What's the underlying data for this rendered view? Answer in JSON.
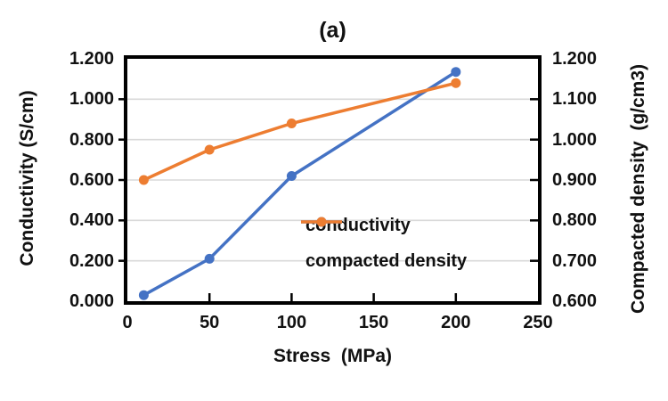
{
  "chart_data": {
    "type": "line",
    "title": "(a)",
    "xlabel": "Stress  (MPa)",
    "ylabel_left": "Conductivity (S/cm)",
    "ylabel_right": "Compacted density  (g/cm3)",
    "x": [
      10,
      50,
      100,
      200
    ],
    "series": [
      {
        "name": "conductivity",
        "axis": "left",
        "color": "#4472C4",
        "values": [
          0.03,
          0.21,
          0.62,
          1.135
        ]
      },
      {
        "name": "compacted density",
        "axis": "right",
        "color": "#ED7D31",
        "values": [
          0.9,
          0.975,
          1.04,
          1.14
        ]
      }
    ],
    "x_axis": {
      "min": 0,
      "max": 250,
      "step": 50,
      "ticks": [
        "0",
        "50",
        "100",
        "150",
        "200",
        "250"
      ]
    },
    "y_left": {
      "min": 0.0,
      "max": 1.2,
      "step": 0.2,
      "ticks": [
        "0.000",
        "0.200",
        "0.400",
        "0.600",
        "0.800",
        "1.000",
        "1.200"
      ]
    },
    "y_right": {
      "min": 0.6,
      "max": 1.2,
      "step": 0.1,
      "ticks": [
        "0.600",
        "0.700",
        "0.800",
        "0.900",
        "1.000",
        "1.100",
        "1.200"
      ]
    },
    "grid": "horizontal",
    "grid_color": "#D9D9D9",
    "frame_color": "#000000",
    "legend_position": "inside-right-middle",
    "legend": [
      {
        "label": "conductivity",
        "color": "#4472C4"
      },
      {
        "label": "compacted density",
        "color": "#ED7D31"
      }
    ]
  }
}
